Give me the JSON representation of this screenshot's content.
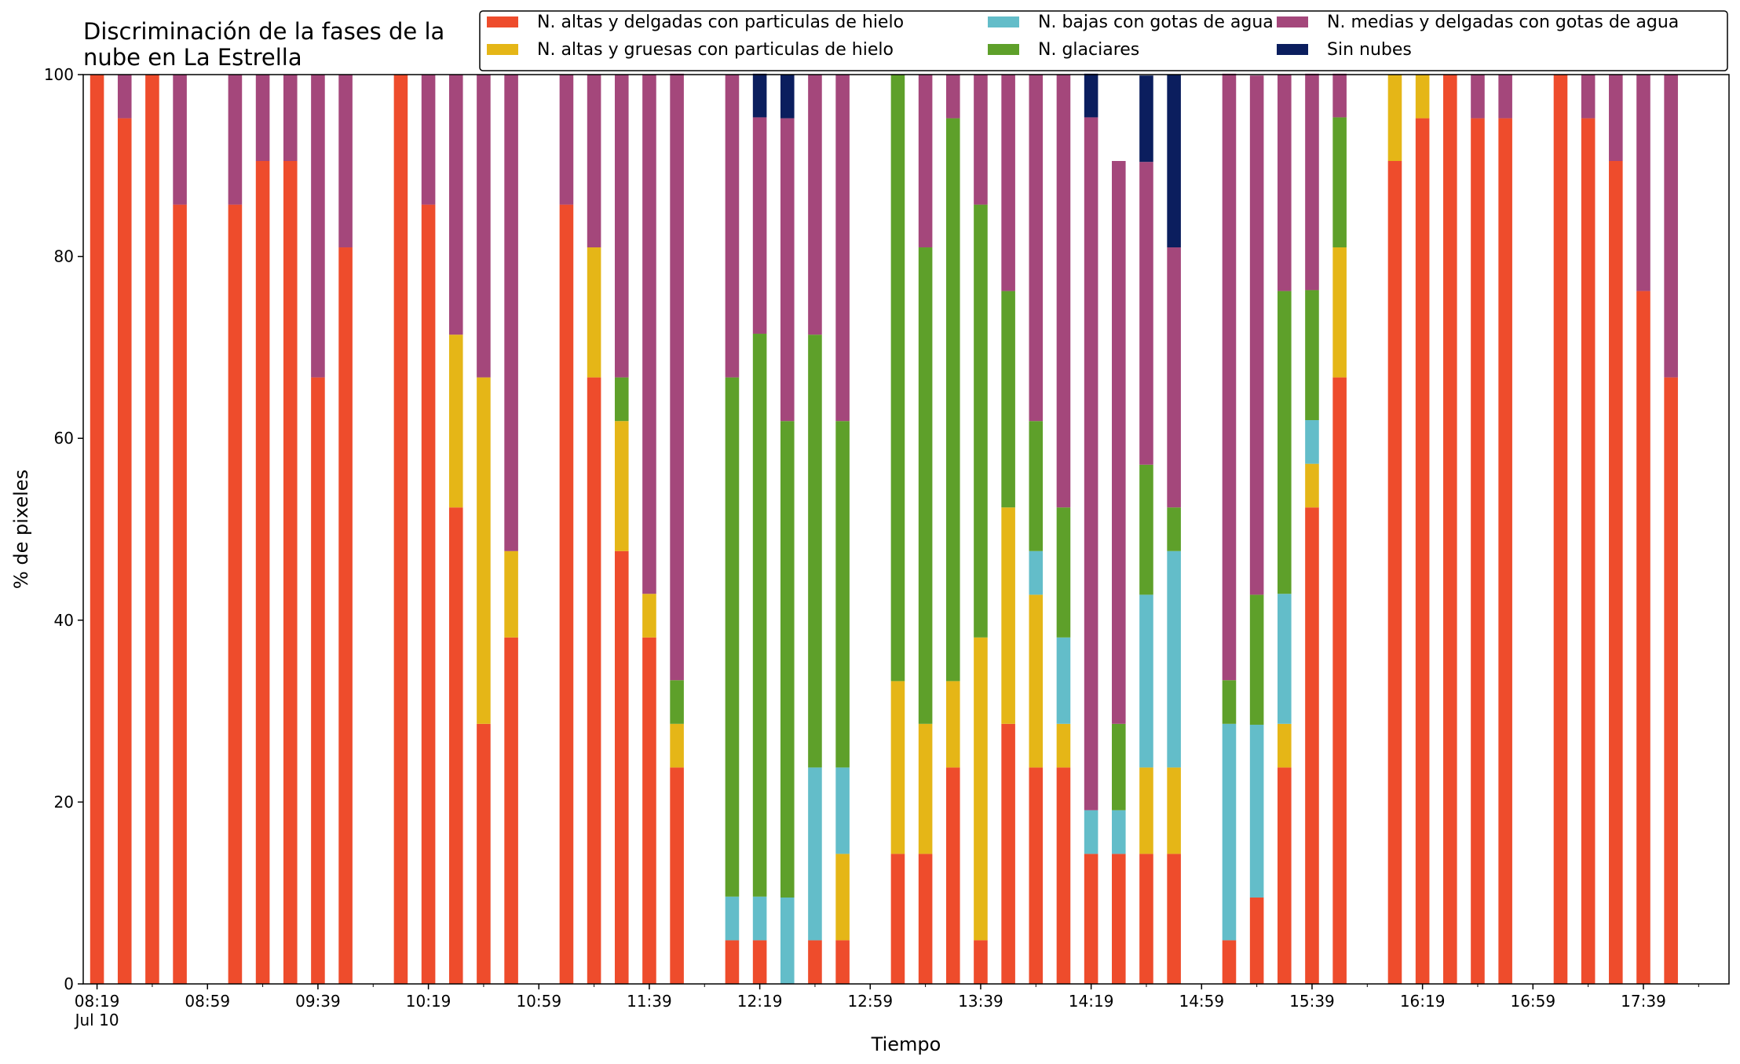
{
  "chart_data": {
    "type": "bar",
    "stacked": true,
    "title_lines": [
      "Discriminación de la fases de la",
      "nube en La Estrella"
    ],
    "xlabel": "Tiempo",
    "ylabel": "% de pixeles",
    "ylim": [
      0,
      100
    ],
    "yticks": [
      0,
      20,
      40,
      60,
      80,
      100
    ],
    "xlim": [
      "08:14",
      "18:10"
    ],
    "x_tick_labels": [
      "08:19",
      "08:59",
      "09:39",
      "10:19",
      "10:59",
      "11:39",
      "12:19",
      "12:59",
      "13:39",
      "14:19",
      "14:59",
      "15:39",
      "16:19",
      "16:59",
      "17:39"
    ],
    "x_date_label": "Jul 10",
    "minor_tick_interval_min": 20,
    "grid": false,
    "legend_position": "top-right",
    "bar_width_min": 5,
    "x": [
      "08:19",
      "08:29",
      "08:39",
      "08:49",
      "09:09",
      "09:19",
      "09:29",
      "09:39",
      "09:49",
      "10:09",
      "10:19",
      "10:29",
      "10:39",
      "10:49",
      "11:09",
      "11:19",
      "11:29",
      "11:39",
      "11:49",
      "12:09",
      "12:19",
      "12:29",
      "12:39",
      "12:49",
      "13:09",
      "13:19",
      "13:29",
      "13:39",
      "13:49",
      "13:59",
      "14:09",
      "14:19",
      "14:29",
      "14:39",
      "14:49",
      "15:09",
      "15:19",
      "15:29",
      "15:39",
      "15:49",
      "16:09",
      "16:19",
      "16:29",
      "16:39",
      "16:49",
      "17:09",
      "17:19",
      "17:29",
      "17:39",
      "17:49"
    ],
    "series": [
      {
        "name": "N. altas y delgadas con particulas de hielo",
        "color": "#ee4c2c",
        "values": [
          100,
          95.2,
          100,
          85.7,
          85.7,
          90.5,
          90.5,
          66.7,
          81,
          100,
          85.7,
          52.4,
          28.6,
          38.1,
          85.7,
          66.7,
          47.6,
          38.1,
          23.8,
          4.8,
          4.8,
          0,
          4.8,
          4.8,
          14.3,
          14.3,
          23.8,
          4.8,
          28.6,
          23.8,
          23.8,
          14.3,
          14.3,
          14.3,
          14.3,
          4.8,
          9.5,
          23.8,
          52.4,
          66.7,
          90.5,
          95.2,
          100,
          95.2,
          95.2,
          100,
          95.2,
          90.5,
          76.2,
          66.7
        ]
      },
      {
        "name": "N. altas y gruesas con particulas de hielo",
        "color": "#e5b617",
        "values": [
          0,
          0,
          0,
          0,
          0,
          0,
          0,
          0,
          0,
          0,
          0,
          19,
          38.1,
          9.5,
          0,
          14.3,
          14.3,
          4.8,
          4.8,
          0,
          0,
          0,
          0,
          9.5,
          19,
          14.3,
          9.5,
          33.3,
          23.8,
          19,
          4.8,
          0,
          0,
          9.5,
          9.5,
          0,
          0,
          4.8,
          4.8,
          14.3,
          9.5,
          4.8,
          0,
          0,
          0,
          0,
          0,
          0,
          0,
          0
        ]
      },
      {
        "name": "N. bajas con gotas de agua",
        "color": "#63bdc9",
        "values": [
          0,
          0,
          0,
          0,
          0,
          0,
          0,
          0,
          0,
          0,
          0,
          0,
          0,
          0,
          0,
          0,
          0,
          0,
          0,
          4.8,
          4.8,
          9.5,
          19,
          9.5,
          0,
          0,
          0,
          0,
          0,
          4.8,
          9.5,
          4.8,
          4.8,
          19,
          23.8,
          23.8,
          19,
          14.3,
          4.8,
          0,
          0,
          0,
          0,
          0,
          0,
          0,
          0,
          0,
          0,
          0
        ]
      },
      {
        "name": "N. glaciares",
        "color": "#5ea02a",
        "values": [
          0,
          0,
          0,
          0,
          0,
          0,
          0,
          0,
          0,
          0,
          0,
          0,
          0,
          0,
          0,
          0,
          4.8,
          0,
          4.8,
          57.1,
          61.9,
          52.4,
          47.6,
          38.1,
          66.7,
          52.4,
          61.9,
          47.6,
          23.8,
          14.3,
          14.3,
          0,
          9.5,
          14.3,
          4.8,
          4.8,
          14.3,
          33.3,
          14.3,
          14.3,
          0,
          0,
          0,
          0,
          0,
          0,
          0,
          0,
          0,
          0
        ]
      },
      {
        "name": "N. medias y delgadas con gotas de agua",
        "color": "#a4477b",
        "values": [
          0,
          4.8,
          0,
          14.3,
          14.3,
          9.5,
          9.5,
          33.3,
          19,
          0,
          14.3,
          28.6,
          33.3,
          52.4,
          14.3,
          19,
          33.3,
          57.1,
          66.7,
          33.3,
          23.8,
          33.3,
          28.6,
          38.1,
          0,
          19,
          4.8,
          14.3,
          23.8,
          38.1,
          47.6,
          76.2,
          61.9,
          33.3,
          28.6,
          66.7,
          57.1,
          23.8,
          23.8,
          4.8,
          0,
          0,
          0,
          4.8,
          4.8,
          0,
          4.8,
          9.5,
          23.8,
          33.3
        ]
      },
      {
        "name": "Sin nubes",
        "color": "#0b1e5e",
        "values": [
          0,
          0,
          0,
          0,
          0,
          0,
          0,
          0,
          0,
          0,
          0,
          0,
          0,
          0,
          0,
          0,
          0,
          0,
          0,
          0,
          4.8,
          4.8,
          0,
          0,
          0,
          0,
          0,
          0,
          0,
          0,
          0,
          4.8,
          0,
          9.5,
          19,
          0,
          0,
          0,
          0,
          0,
          0,
          0,
          0,
          0,
          0,
          0,
          0,
          0,
          0,
          0
        ]
      }
    ],
    "legend_order": [
      0,
      1,
      2,
      3,
      4,
      5
    ]
  }
}
